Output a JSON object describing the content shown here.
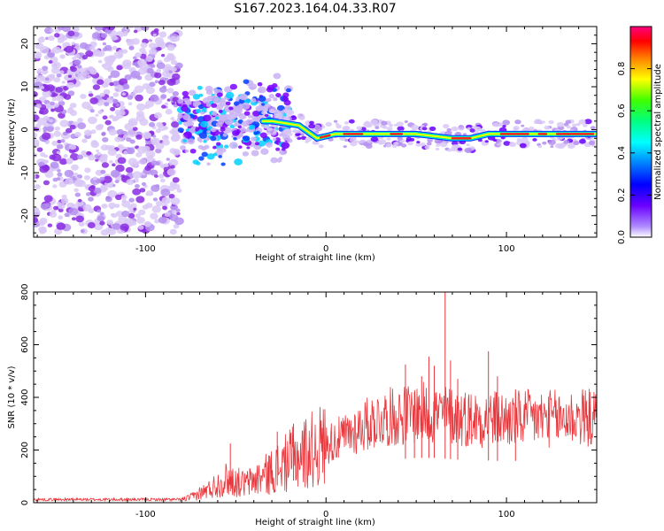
{
  "title": "S167.2023.164.04.33.R07",
  "chart_data": [
    {
      "type": "heatmap",
      "xlabel": "Height of straight line (km)",
      "ylabel": "Frequency (Hz)",
      "xlim": [
        -162,
        150
      ],
      "ylim": [
        -25,
        24
      ],
      "x_ticks": [
        -100,
        0,
        100
      ],
      "y_ticks": [
        -20,
        -10,
        0,
        10,
        20
      ],
      "colorbar": {
        "label": "Normalized spectral amplitude",
        "range": [
          0,
          1
        ],
        "ticks": [
          0.0,
          0.2,
          0.4,
          0.6,
          0.8
        ]
      },
      "segments": [
        {
          "x_start": -162,
          "x_end": -81,
          "description": "noise",
          "freq_spread": 24
        },
        {
          "x_start": -81,
          "x_end": -20,
          "description": "scattered",
          "freq_spread": 8
        },
        {
          "x_start": -20,
          "x_end": 150,
          "description": "tonal",
          "freq_center": -1,
          "freq_spread": 2
        }
      ],
      "ridge": [
        {
          "x": -30,
          "y": 2
        },
        {
          "x": -15,
          "y": 1
        },
        {
          "x": -5,
          "y": -2
        },
        {
          "x": 5,
          "y": -1
        },
        {
          "x": 30,
          "y": -1
        },
        {
          "x": 50,
          "y": -1
        },
        {
          "x": 70,
          "y": -2
        },
        {
          "x": 80,
          "y": -2
        },
        {
          "x": 90,
          "y": -1
        },
        {
          "x": 120,
          "y": -1
        },
        {
          "x": 150,
          "y": -1
        }
      ]
    },
    {
      "type": "line",
      "xlabel": "Height of straight line (km)",
      "ylabel": "SNR (10 * v/v)",
      "xlim": [
        -162,
        150
      ],
      "ylim": [
        0,
        800
      ],
      "x_ticks": [
        -100,
        0,
        100
      ],
      "y_ticks": [
        0,
        200,
        400,
        600,
        800
      ],
      "color": "#e8383d",
      "envelope": [
        {
          "x": -162,
          "y": 12
        },
        {
          "x": -80,
          "y": 12
        },
        {
          "x": -75,
          "y": 20
        },
        {
          "x": -65,
          "y": 50
        },
        {
          "x": -55,
          "y": 90
        },
        {
          "x": -45,
          "y": 70
        },
        {
          "x": -35,
          "y": 100
        },
        {
          "x": -25,
          "y": 140
        },
        {
          "x": -15,
          "y": 180
        },
        {
          "x": -5,
          "y": 210
        },
        {
          "x": 10,
          "y": 250
        },
        {
          "x": 20,
          "y": 290
        },
        {
          "x": 30,
          "y": 320
        },
        {
          "x": 40,
          "y": 330
        },
        {
          "x": 50,
          "y": 340
        },
        {
          "x": 60,
          "y": 340
        },
        {
          "x": 70,
          "y": 330
        },
        {
          "x": 80,
          "y": 320
        },
        {
          "x": 90,
          "y": 320
        },
        {
          "x": 100,
          "y": 315
        },
        {
          "x": 110,
          "y": 320
        },
        {
          "x": 120,
          "y": 320
        },
        {
          "x": 130,
          "y": 320
        },
        {
          "x": 140,
          "y": 325
        },
        {
          "x": 150,
          "y": 320
        }
      ],
      "spikes": [
        {
          "x": -53,
          "y": 225
        },
        {
          "x": -27,
          "y": 270
        },
        {
          "x": -18,
          "y": 300
        },
        {
          "x": 44,
          "y": 525
        },
        {
          "x": 49,
          "y": 420
        },
        {
          "x": 53,
          "y": 480
        },
        {
          "x": 57,
          "y": 555
        },
        {
          "x": 60,
          "y": 520
        },
        {
          "x": 66,
          "y": 810
        },
        {
          "x": 69,
          "y": 540
        },
        {
          "x": 73,
          "y": 470
        },
        {
          "x": 90,
          "y": 575
        },
        {
          "x": 95,
          "y": 480
        },
        {
          "x": 105,
          "y": 430
        }
      ]
    }
  ]
}
